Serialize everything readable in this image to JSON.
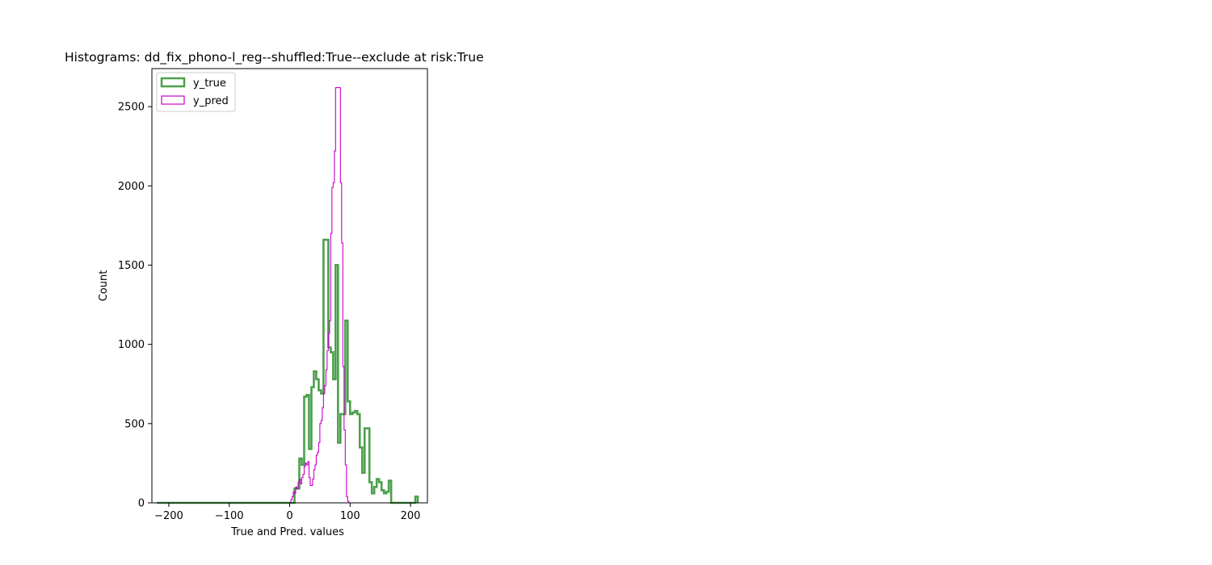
{
  "chart_data": {
    "type": "histogram",
    "title": "Histograms: dd_fix_phono-l_reg--shuffled:True--exclude at risk:True",
    "xlabel": "True and Pred. values",
    "ylabel": "Count",
    "xlim": [
      -228,
      228
    ],
    "ylim": [
      0,
      2740
    ],
    "xticks": [
      -200,
      -100,
      0,
      100,
      200
    ],
    "xtick_labels": [
      "−200",
      "−100",
      "0",
      "100",
      "200"
    ],
    "yticks": [
      0,
      500,
      1000,
      1500,
      2000,
      2500
    ],
    "ytick_labels": [
      "0",
      "500",
      "1000",
      "1500",
      "2000",
      "2500"
    ],
    "grid": false,
    "legend_position": "upper-left",
    "series": [
      {
        "name": "y_true",
        "color": "#4c9f4c",
        "style": "step-thick",
        "bin_width": 4,
        "points": [
          [
            -220,
            0
          ],
          [
            8,
            0
          ],
          [
            8,
            90
          ],
          [
            12,
            90
          ],
          [
            12,
            90
          ],
          [
            16,
            280
          ],
          [
            20,
            240
          ],
          [
            24,
            670
          ],
          [
            28,
            680
          ],
          [
            32,
            340
          ],
          [
            36,
            730
          ],
          [
            40,
            830
          ],
          [
            44,
            780
          ],
          [
            48,
            710
          ],
          [
            52,
            690
          ],
          [
            56,
            1660
          ],
          [
            60,
            1660
          ],
          [
            64,
            980
          ],
          [
            68,
            950
          ],
          [
            72,
            780
          ],
          [
            76,
            1500
          ],
          [
            80,
            380
          ],
          [
            84,
            560
          ],
          [
            88,
            560
          ],
          [
            92,
            1150
          ],
          [
            96,
            640
          ],
          [
            100,
            560
          ],
          [
            104,
            570
          ],
          [
            108,
            580
          ],
          [
            112,
            560
          ],
          [
            116,
            350
          ],
          [
            120,
            190
          ],
          [
            124,
            470
          ],
          [
            128,
            470
          ],
          [
            132,
            130
          ],
          [
            136,
            60
          ],
          [
            140,
            100
          ],
          [
            144,
            150
          ],
          [
            148,
            130
          ],
          [
            152,
            80
          ],
          [
            156,
            60
          ],
          [
            160,
            70
          ],
          [
            164,
            140
          ],
          [
            168,
            0
          ],
          [
            208,
            0
          ],
          [
            208,
            40
          ],
          [
            212,
            40
          ],
          [
            212,
            0
          ]
        ]
      },
      {
        "name": "y_pred",
        "color": "#cc00cc",
        "style": "step-thin",
        "bin_width": 2.05,
        "points": [
          [
            -220,
            0
          ],
          [
            2,
            0
          ],
          [
            2,
            20
          ],
          [
            4,
            40
          ],
          [
            6,
            70
          ],
          [
            8,
            60
          ],
          [
            10,
            100
          ],
          [
            12,
            90
          ],
          [
            14,
            130
          ],
          [
            16,
            150
          ],
          [
            18,
            120
          ],
          [
            20,
            160
          ],
          [
            22,
            180
          ],
          [
            24,
            230
          ],
          [
            26,
            250
          ],
          [
            28,
            240
          ],
          [
            30,
            260
          ],
          [
            32,
            160
          ],
          [
            34,
            110
          ],
          [
            36,
            110
          ],
          [
            38,
            150
          ],
          [
            40,
            210
          ],
          [
            42,
            240
          ],
          [
            44,
            300
          ],
          [
            46,
            320
          ],
          [
            48,
            380
          ],
          [
            50,
            500
          ],
          [
            52,
            520
          ],
          [
            54,
            600
          ],
          [
            56,
            690
          ],
          [
            58,
            740
          ],
          [
            60,
            840
          ],
          [
            62,
            960
          ],
          [
            64,
            1070
          ],
          [
            66,
            1150
          ],
          [
            68,
            1700
          ],
          [
            70,
            1990
          ],
          [
            72,
            2020
          ],
          [
            74,
            2220
          ],
          [
            76,
            2620
          ],
          [
            78,
            2620
          ],
          [
            80,
            2620
          ],
          [
            82,
            2620
          ],
          [
            84,
            2020
          ],
          [
            86,
            1640
          ],
          [
            88,
            860
          ],
          [
            90,
            460
          ],
          [
            92,
            240
          ],
          [
            94,
            40
          ],
          [
            96,
            10
          ],
          [
            98,
            0
          ],
          [
            228,
            0
          ]
        ]
      }
    ]
  },
  "legend": {
    "entries": [
      {
        "label": "y_true",
        "color": "#4c9f4c",
        "line_width": 2.5
      },
      {
        "label": "y_pred",
        "color": "#cc00cc",
        "line_width": 1.2
      }
    ]
  }
}
